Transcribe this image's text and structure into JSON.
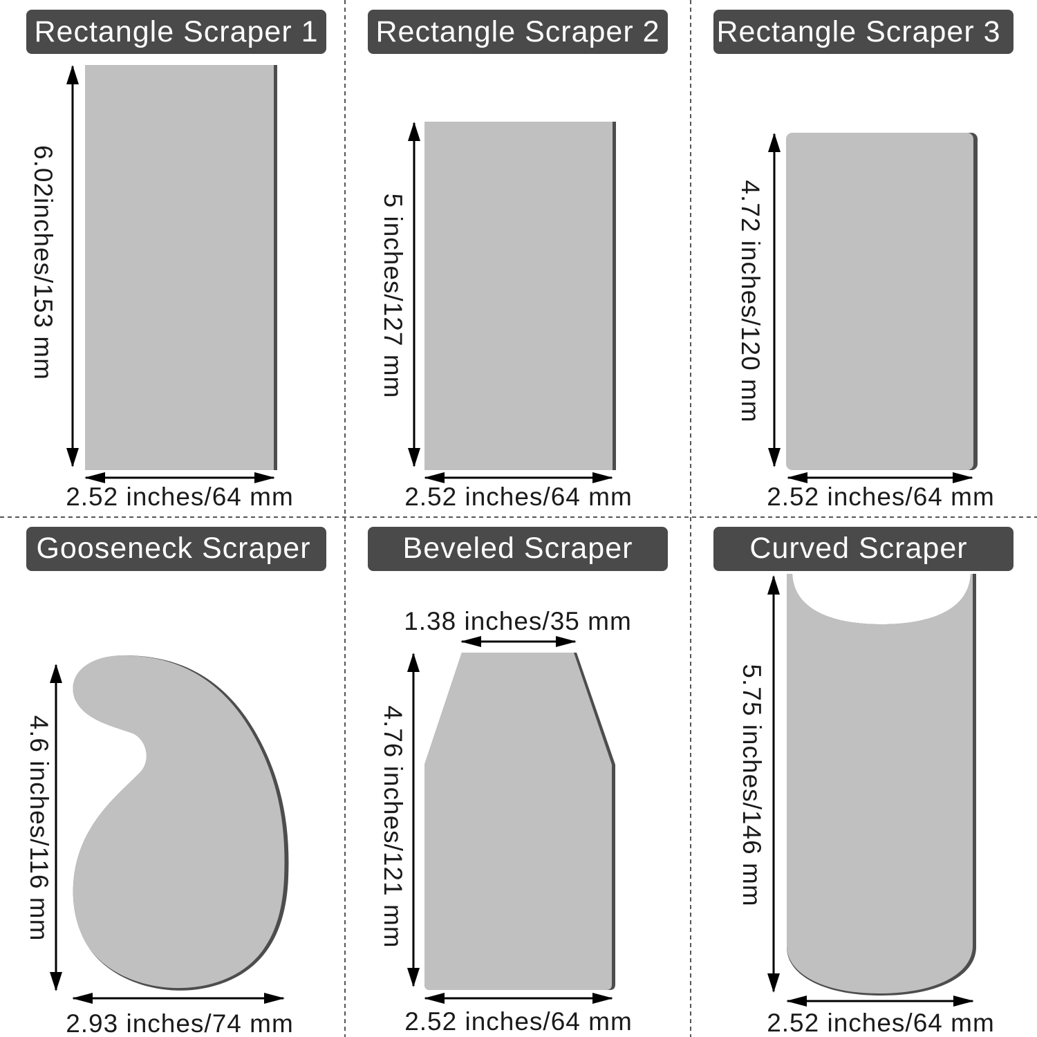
{
  "panels": [
    {
      "title": "Rectangle Scraper 1",
      "height_label": "6.02inches/153 mm",
      "width_label": "2.52 inches/64 mm"
    },
    {
      "title": "Rectangle Scraper 2",
      "height_label": "5 inches/127 mm",
      "width_label": "2.52 inches/64 mm"
    },
    {
      "title": "Rectangle Scraper 3",
      "height_label": "4.72 inches/120 mm",
      "width_label": "2.52 inches/64 mm"
    },
    {
      "title": "Gooseneck Scraper",
      "height_label": "4.6 inches/116 mm",
      "width_label": "2.93 inches/74 mm"
    },
    {
      "title": "Beveled Scraper",
      "top_label": "1.38 inches/35 mm",
      "height_label": "4.76 inches/121 mm",
      "width_label": "2.52 inches/64 mm"
    },
    {
      "title": "Curved Scraper",
      "height_label": "5.75 inches/146 mm",
      "width_label": "2.52 inches/64 mm"
    }
  ],
  "colors": {
    "title_bar": "#4a4a4a",
    "title_text": "#ffffff",
    "scraper_fill": "#c0c0c0",
    "scraper_edge": "#4d4d4d"
  }
}
